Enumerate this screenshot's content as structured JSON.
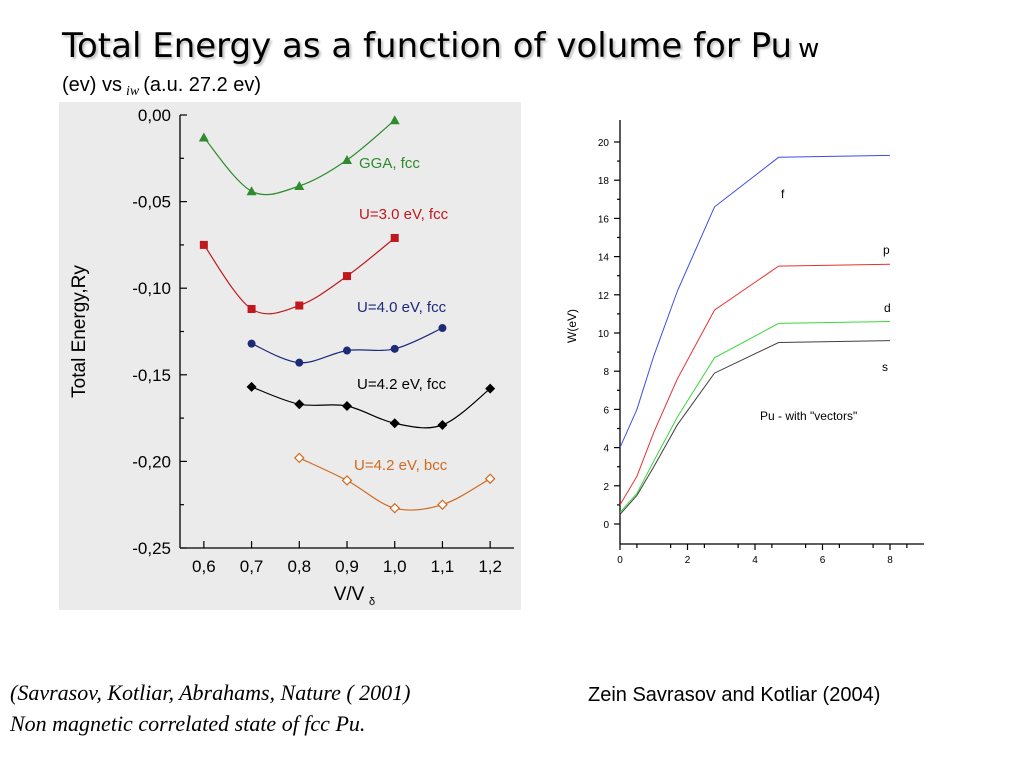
{
  "slide": {
    "title": "Total Energy as a function of volume for Pu",
    "title_symbol": "w",
    "subtitle_pre": "(ev) vs",
    "subtitle_sub": "iw",
    "subtitle_post": "(a.u. 27.2 ev)",
    "citation_line1": "(Savrasov, Kotliar, Abrahams,  Nature ( 2001)",
    "citation_line2": "Non magnetic correlated state of fcc Pu.",
    "credit": "Zein Savrasov and Kotliar (2004)"
  },
  "chart_data": [
    {
      "type": "line",
      "title": "",
      "xlabel": "V/V",
      "xlabel_sub": "δ",
      "ylabel": "Total Energy,Ry",
      "xlim": [
        0.55,
        1.25
      ],
      "ylim": [
        -0.25,
        0.0
      ],
      "xticks": [
        "0,6",
        "0,7",
        "0,8",
        "0,9",
        "1,0",
        "1,1",
        "1,2"
      ],
      "yticks": [
        "0,00",
        "-0,05",
        "-0,10",
        "-0,15",
        "-0,20",
        "-0,25"
      ],
      "background": "#ebebeb",
      "series": [
        {
          "name": "GGA, fcc",
          "color": "#2e8b2e",
          "marker": "triangle",
          "x": [
            0.6,
            0.7,
            0.8,
            0.9,
            1.0
          ],
          "y": [
            -0.013,
            -0.044,
            -0.041,
            -0.026,
            -0.003
          ]
        },
        {
          "name": "U=3.0 eV, fcc",
          "color": "#c0181c",
          "marker": "square",
          "x": [
            0.6,
            0.7,
            0.8,
            0.9,
            1.0
          ],
          "y": [
            -0.075,
            -0.112,
            -0.11,
            -0.093,
            -0.071
          ]
        },
        {
          "name": "U=4.0 eV, fcc",
          "color": "#1c2a78",
          "marker": "circle",
          "x": [
            0.7,
            0.8,
            0.9,
            1.0,
            1.1
          ],
          "y": [
            -0.132,
            -0.143,
            -0.136,
            -0.135,
            -0.123
          ]
        },
        {
          "name": "U=4.2 eV, fcc",
          "color": "#000000",
          "marker": "diamond",
          "x": [
            0.7,
            0.8,
            0.9,
            1.0,
            1.1,
            1.2
          ],
          "y": [
            -0.157,
            -0.167,
            -0.168,
            -0.178,
            -0.179,
            -0.158
          ]
        },
        {
          "name": "U=4.2 eV, bcc",
          "color": "#d06a20",
          "marker": "diamond-open",
          "x": [
            0.8,
            0.9,
            1.0,
            1.1,
            1.2
          ],
          "y": [
            -0.198,
            -0.211,
            -0.227,
            -0.225,
            -0.21
          ]
        }
      ]
    },
    {
      "type": "line",
      "title": "",
      "xlabel": "",
      "ylabel": "W(eV)",
      "xlim": [
        0,
        9
      ],
      "ylim": [
        -1,
        21
      ],
      "xticks": [
        "0",
        "2",
        "4",
        "6",
        "8"
      ],
      "yticks": [
        "0",
        "2",
        "4",
        "6",
        "8",
        "10",
        "12",
        "14",
        "16",
        "18",
        "20"
      ],
      "annotation": "Pu - with \"vectors\"",
      "series": [
        {
          "name": "f",
          "color": "#3a4ee8",
          "x": [
            0,
            0.5,
            1.0,
            1.7,
            2.8,
            4.7,
            8.0
          ],
          "y": [
            4.0,
            6.0,
            8.8,
            12.2,
            16.6,
            19.2,
            19.3
          ]
        },
        {
          "name": "p",
          "color": "#e83030",
          "x": [
            0,
            0.5,
            1.0,
            1.7,
            2.8,
            4.7,
            8.0
          ],
          "y": [
            1.0,
            2.5,
            4.8,
            7.6,
            11.2,
            13.5,
            13.6
          ]
        },
        {
          "name": "d",
          "color": "#3cd83c",
          "x": [
            0,
            0.5,
            1.0,
            1.7,
            2.8,
            4.7,
            8.0
          ],
          "y": [
            0.6,
            1.6,
            3.3,
            5.6,
            8.7,
            10.5,
            10.6
          ]
        },
        {
          "name": "s",
          "color": "#404040",
          "x": [
            0,
            0.5,
            1.0,
            1.7,
            2.8,
            4.7,
            8.0
          ],
          "y": [
            0.5,
            1.5,
            3.0,
            5.2,
            7.9,
            9.5,
            9.6
          ]
        }
      ]
    }
  ]
}
